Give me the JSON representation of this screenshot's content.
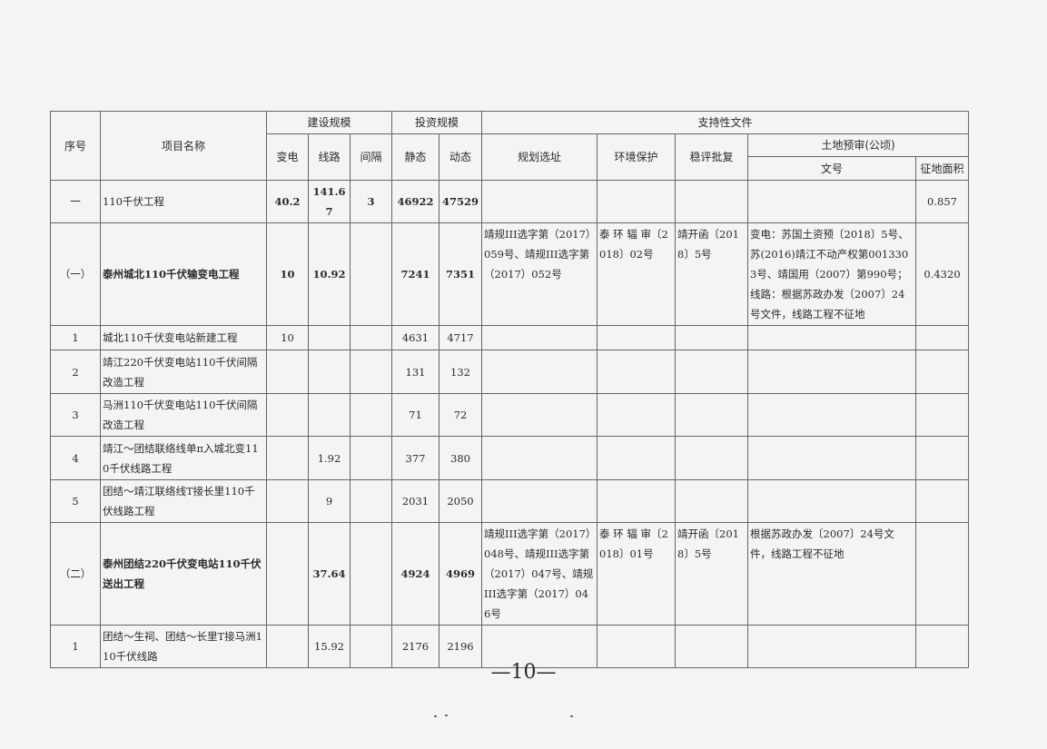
{
  "header": {
    "seq": "序号",
    "name": "项目名称",
    "construction_scale": "建设规模",
    "substation": "变电",
    "line": "线路",
    "bay": "间隔",
    "investment_scale": "投资规模",
    "static": "静态",
    "dynamic": "动态",
    "supporting_docs": "支持性文件",
    "planning_site": "规划选址",
    "env_protection": "环境保护",
    "stability_approval": "稳评批复",
    "land_pre_review": "土地预审(公顷)",
    "doc_no": "文号",
    "land_area": "征地面积"
  },
  "rows": [
    {
      "seq": "一",
      "name": "110千伏工程",
      "substation": "40.2",
      "line": "141.67",
      "bay": "3",
      "static": "46922",
      "dynamic": "47529",
      "planning": "",
      "env": "",
      "stability": "",
      "land_doc": "",
      "land_area": "0.857",
      "bold": true
    },
    {
      "seq": "（一）",
      "name": "泰州城北110千伏输变电工程",
      "substation": "10",
      "line": "10.92",
      "bay": "",
      "static": "7241",
      "dynamic": "7351",
      "planning": "靖规III选字第（2017）059号、靖规III选字第（2017）052号",
      "env": "泰 环 辐 审〔2018〕02号",
      "stability": "靖开函〔2018〕5号",
      "land_doc": "变电：苏国土资预〔2018〕5号、苏(2016)靖江不动产权第0013303号、靖国用（2007）第990号；线路：根据苏政办发〔2007〕24号文件，线路工程不征地",
      "land_area": "0.4320",
      "bold": true
    },
    {
      "seq": "1",
      "name": "城北110千伏变电站新建工程",
      "substation": "10",
      "line": "",
      "bay": "",
      "static": "4631",
      "dynamic": "4717",
      "planning": "",
      "env": "",
      "stability": "",
      "land_doc": "",
      "land_area": "",
      "bold": false
    },
    {
      "seq": "2",
      "name": "靖江220千伏变电站110千伏间隔改造工程",
      "substation": "",
      "line": "",
      "bay": "",
      "static": "131",
      "dynamic": "132",
      "planning": "",
      "env": "",
      "stability": "",
      "land_doc": "",
      "land_area": "",
      "bold": false
    },
    {
      "seq": "3",
      "name": "马洲110千伏变电站110千伏间隔改造工程",
      "substation": "",
      "line": "",
      "bay": "",
      "static": "71",
      "dynamic": "72",
      "planning": "",
      "env": "",
      "stability": "",
      "land_doc": "",
      "land_area": "",
      "bold": false
    },
    {
      "seq": "4",
      "name": "靖江～团结联络线单π入城北变110千伏线路工程",
      "substation": "",
      "line": "1.92",
      "bay": "",
      "static": "377",
      "dynamic": "380",
      "planning": "",
      "env": "",
      "stability": "",
      "land_doc": "",
      "land_area": "",
      "bold": false
    },
    {
      "seq": "5",
      "name": "团结～靖江联络线T接长里110千伏线路工程",
      "substation": "",
      "line": "9",
      "bay": "",
      "static": "2031",
      "dynamic": "2050",
      "planning": "",
      "env": "",
      "stability": "",
      "land_doc": "",
      "land_area": "",
      "bold": false
    },
    {
      "seq": "（二）",
      "name": "泰州团结220千伏变电站110千伏送出工程",
      "substation": "",
      "line": "37.64",
      "bay": "",
      "static": "4924",
      "dynamic": "4969",
      "planning": "靖规III选字第（2017）048号、靖规III选字第（2017）047号、靖规III选字第（2017）046号",
      "env": "泰 环 辐 审〔2018〕01号",
      "stability": "靖开函〔2018〕5号",
      "land_doc": "根据苏政办发〔2007〕24号文件，线路工程不征地",
      "land_area": "",
      "bold": true
    },
    {
      "seq": "1",
      "name": "团结～生祠、团结～长里T接马洲110千伏线路",
      "substation": "",
      "line": "15.92",
      "bay": "",
      "static": "2176",
      "dynamic": "2196",
      "planning": "",
      "env": "",
      "stability": "",
      "land_doc": "",
      "land_area": "",
      "bold": false
    }
  ],
  "page_number": "—10—"
}
